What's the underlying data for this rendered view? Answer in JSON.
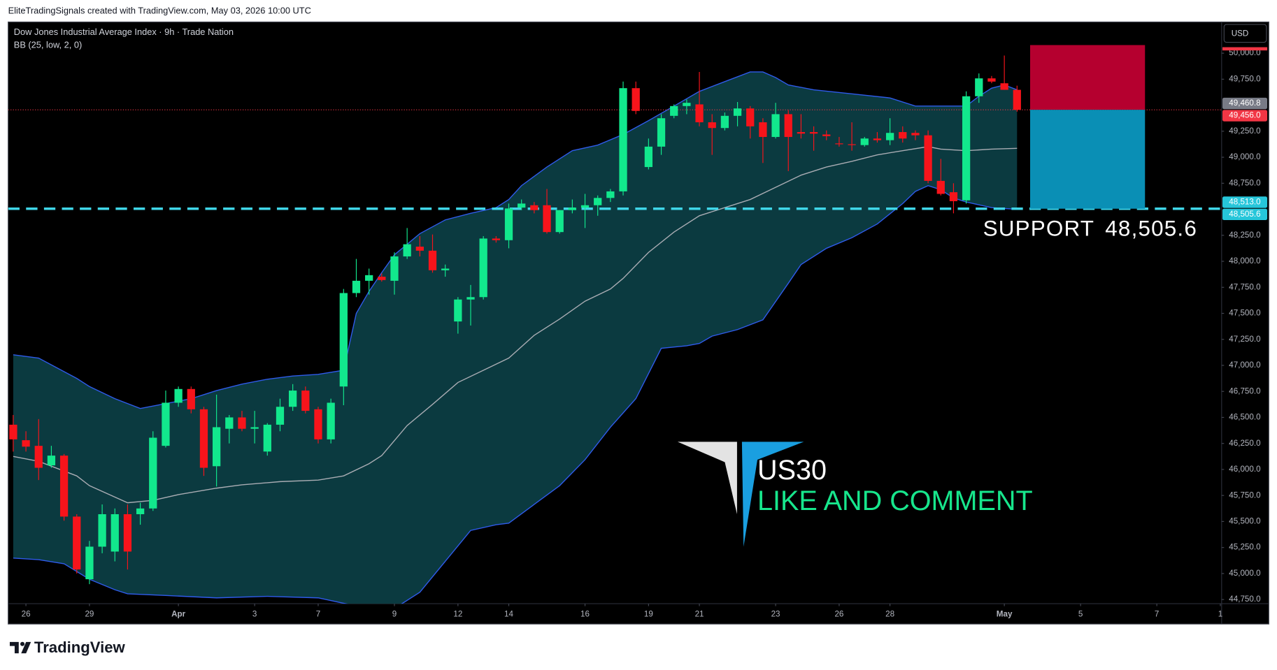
{
  "header": "EliteTradingSignals created with TradingView.com, May 03, 2026 10:00 UTC",
  "footer_brand": "TradingView",
  "chart_data": {
    "type": "candlestick",
    "title": "Dow Jones Industrial Average Index · 9h · Trade Nation",
    "indicator": "BB (25, low, 2, 0)",
    "currency": "USD",
    "up_color": "#12e88d",
    "down_color": "#f7141b",
    "open": [
      46430,
      46281,
      46227,
      46039,
      46133,
      45547,
      44945,
      45258,
      45211,
      45570,
      45570,
      45625,
      46227,
      46641,
      46773,
      46578,
      46031,
      46391,
      46500,
      46391,
      46172,
      46430,
      46602,
      46758,
      46578,
      46289,
      46797,
      47695,
      47813,
      47852,
      47813,
      48047,
      48141,
      48102,
      47914,
      47422,
      47633,
      47656,
      48219,
      48203,
      48516,
      48539,
      48539,
      48281,
      48492,
      48516,
      48539,
      48609,
      48672,
      49664,
      48906,
      49102,
      49398,
      49492,
      49508,
      49336,
      49281,
      49398,
      49469,
      49336,
      49195,
      49414,
      49242,
      49242,
      49219,
      49133,
      49125,
      49117,
      49180,
      49164,
      49242,
      49234,
      49211,
      48773,
      48664,
      48586,
      49586,
      49758,
      49711,
      49648
    ],
    "high": [
      46523,
      46367,
      46484,
      46227,
      46148,
      45570,
      45313,
      45664,
      45625,
      45664,
      45680,
      46367,
      46758,
      46797,
      46797,
      46602,
      46719,
      46523,
      46563,
      46563,
      46445,
      46680,
      46820,
      46797,
      46602,
      46680,
      47734,
      48023,
      47930,
      47883,
      48086,
      48320,
      48242,
      48258,
      47969,
      47656,
      47773,
      48242,
      48242,
      48555,
      48594,
      48570,
      48695,
      48492,
      48594,
      48648,
      48633,
      48695,
      49727,
      49727,
      49180,
      49414,
      49508,
      49555,
      49820,
      49414,
      49430,
      49531,
      49492,
      49375,
      49523,
      49453,
      49414,
      49297,
      49258,
      49195,
      49336,
      49195,
      49242,
      49375,
      49297,
      49258,
      49258,
      48984,
      48750,
      49633,
      49805,
      49781,
      49977,
      49688
    ],
    "low": [
      46172,
      46172,
      45898,
      46016,
      45508,
      45000,
      44898,
      45195,
      45117,
      45039,
      45469,
      45602,
      46211,
      46602,
      46539,
      45938,
      45836,
      46250,
      46367,
      46250,
      46133,
      46367,
      46563,
      46539,
      46250,
      46250,
      46617,
      47656,
      47680,
      47805,
      47680,
      48023,
      48047,
      47891,
      47852,
      47305,
      47383,
      47633,
      48180,
      48125,
      48492,
      48461,
      48266,
      48266,
      48461,
      48320,
      48438,
      48570,
      48633,
      49414,
      48883,
      49023,
      49375,
      49414,
      49297,
      49023,
      49258,
      49297,
      49180,
      48945,
      49180,
      48867,
      49180,
      49063,
      49164,
      49102,
      49063,
      49102,
      49141,
      49117,
      49141,
      49164,
      48750,
      48633,
      48461,
      48555,
      49523,
      49711,
      49648,
      49438
    ],
    "close": [
      46289,
      46219,
      46016,
      46133,
      45547,
      45039,
      45258,
      45570,
      45570,
      45211,
      45625,
      46305,
      46641,
      46773,
      46578,
      46016,
      46406,
      46500,
      46391,
      46406,
      46430,
      46602,
      46758,
      46563,
      46289,
      46641,
      47695,
      47813,
      47867,
      47820,
      48047,
      48164,
      48102,
      47914,
      47930,
      47633,
      47656,
      48219,
      48203,
      48508,
      48555,
      48492,
      48281,
      48492,
      48516,
      48539,
      48609,
      48672,
      49664,
      49445,
      49102,
      49375,
      49492,
      49523,
      49336,
      49281,
      49398,
      49469,
      49297,
      49195,
      49414,
      49195,
      49227,
      49227,
      49203,
      49125,
      49117,
      49180,
      49164,
      49234,
      49180,
      49211,
      48773,
      48648,
      48578,
      49586,
      49758,
      49727,
      49648,
      49456
    ],
    "bands": [
      {
        "color": "#2f5bea",
        "x": [
          0,
          2,
          5,
          6,
          8,
          10,
          12,
          14,
          16,
          18,
          20,
          22,
          24,
          26,
          27,
          28,
          29,
          30,
          31,
          32,
          34,
          36,
          38,
          39,
          40,
          42,
          44,
          46,
          48,
          50,
          52,
          54,
          56,
          58,
          59,
          60,
          61,
          63,
          66,
          69,
          71,
          73,
          75,
          76,
          77,
          78,
          79
        ],
        "values": [
          47102,
          47070,
          46875,
          46797,
          46680,
          46586,
          46633,
          46680,
          46758,
          46820,
          46867,
          46898,
          46914,
          46953,
          47500,
          47711,
          47891,
          48063,
          48164,
          48266,
          48398,
          48461,
          48516,
          48594,
          48727,
          48906,
          49063,
          49117,
          49219,
          49352,
          49492,
          49633,
          49727,
          49820,
          49820,
          49766,
          49695,
          49648,
          49609,
          49570,
          49492,
          49492,
          49492,
          49586,
          49664,
          49695,
          49648
        ]
      },
      {
        "color": "#a9acb3",
        "x": [
          0,
          2,
          5,
          6,
          9,
          11,
          13,
          16,
          18,
          21,
          24,
          26,
          28,
          29,
          31,
          33,
          35,
          37,
          39,
          41,
          43,
          45,
          47,
          48,
          50,
          52,
          54,
          56,
          58,
          60,
          62,
          64,
          66,
          68,
          70,
          72,
          73,
          75,
          77,
          79
        ],
        "values": [
          46125,
          46078,
          45938,
          45844,
          45680,
          45703,
          45758,
          45820,
          45852,
          45883,
          45898,
          45938,
          46055,
          46133,
          46422,
          46625,
          46836,
          46953,
          47070,
          47289,
          47445,
          47617,
          47734,
          47836,
          48086,
          48281,
          48438,
          48516,
          48594,
          48711,
          48828,
          48906,
          48961,
          49023,
          49063,
          49102,
          49078,
          49063,
          49078,
          49086
        ]
      },
      {
        "color": "#2f5bea",
        "x": [
          0,
          2,
          4,
          6,
          8,
          9,
          12,
          16,
          20,
          24,
          27,
          30,
          32,
          34,
          36,
          38,
          39,
          41,
          43,
          45,
          47,
          49,
          51,
          53,
          54,
          55,
          57,
          59,
          61,
          62,
          64,
          66,
          68,
          70,
          71,
          72,
          73,
          74,
          75,
          77,
          79
        ],
        "values": [
          45148,
          45133,
          45094,
          44945,
          44844,
          44805,
          44789,
          44766,
          44781,
          44766,
          44688,
          44664,
          44820,
          45117,
          45414,
          45469,
          45484,
          45664,
          45844,
          46094,
          46406,
          46680,
          47164,
          47188,
          47211,
          47281,
          47344,
          47438,
          47789,
          47969,
          48125,
          48227,
          48359,
          48555,
          48672,
          48727,
          48688,
          48609,
          48570,
          48516,
          48500
        ]
      }
    ],
    "band_fill": "#0b3a40",
    "xlim": [
      -0.4,
      95.1
    ],
    "xticks": [
      {
        "value": 1,
        "label": "26"
      },
      {
        "value": 6,
        "label": "29"
      },
      {
        "value": 13,
        "label": "Apr"
      },
      {
        "value": 19,
        "label": "3"
      },
      {
        "value": 24,
        "label": "7"
      },
      {
        "value": 30,
        "label": "9"
      },
      {
        "value": 35,
        "label": "12"
      },
      {
        "value": 39,
        "label": "14"
      },
      {
        "value": 45,
        "label": "16"
      },
      {
        "value": 50,
        "label": "19"
      },
      {
        "value": 54,
        "label": "21"
      },
      {
        "value": 60,
        "label": "23"
      },
      {
        "value": 65,
        "label": "26"
      },
      {
        "value": 69,
        "label": "28"
      },
      {
        "value": 78,
        "label": "May"
      },
      {
        "value": 84,
        "label": "5"
      },
      {
        "value": 90,
        "label": "7"
      },
      {
        "value": 95,
        "label": "1"
      }
    ],
    "ylim": [
      44710,
      50300
    ],
    "yticks": [
      {
        "value": 50000,
        "label": "50,000.0"
      },
      {
        "value": 49750,
        "label": "49,750.0"
      },
      {
        "value": 49250,
        "label": "49,250.0"
      },
      {
        "value": 49000,
        "label": "49,000.0"
      },
      {
        "value": 48750,
        "label": "48,750.0"
      },
      {
        "value": 48250,
        "label": "48,250.0"
      },
      {
        "value": 48000,
        "label": "48,000.0"
      },
      {
        "value": 47750,
        "label": "47,750.0"
      },
      {
        "value": 47500,
        "label": "47,500.0"
      },
      {
        "value": 47250,
        "label": "47,250.0"
      },
      {
        "value": 47000,
        "label": "47,000.0"
      },
      {
        "value": 46750,
        "label": "46,750.0"
      },
      {
        "value": 46500,
        "label": "46,500.0"
      },
      {
        "value": 46250,
        "label": "46,250.0"
      },
      {
        "value": 46000,
        "label": "46,000.0"
      },
      {
        "value": 45750,
        "label": "45,750.0"
      },
      {
        "value": 45500,
        "label": "45,500.0"
      },
      {
        "value": 45250,
        "label": "45,250.0"
      },
      {
        "value": 45000,
        "label": "45,000.0"
      },
      {
        "value": 44750,
        "label": "44,750.0"
      }
    ],
    "grid": false,
    "price_labels": [
      {
        "value": 49460.8,
        "label": "49,460.8",
        "color": "#787b86"
      },
      {
        "value": 49456.0,
        "label": "49,456.0",
        "color": "#f23645"
      },
      {
        "value": 48513.0,
        "label": "48,513.0",
        "color": "#26c6da"
      },
      {
        "value": 48505.6,
        "label": "48,505.6",
        "color": "#26c6da"
      }
    ],
    "support": {
      "label": "SUPPORT",
      "value": 48505.6,
      "value_label": "48,505.6",
      "color": "#3fd6e8"
    },
    "position": {
      "stop": 50078,
      "entry": 49456,
      "target": 48505.6,
      "stop_color": "#b5002f",
      "target_color": "#0a8fb5"
    },
    "watermark": {
      "title": "US30",
      "subtitle": "LIKE AND COMMENT",
      "subtitle_color": "#17e68c"
    }
  }
}
